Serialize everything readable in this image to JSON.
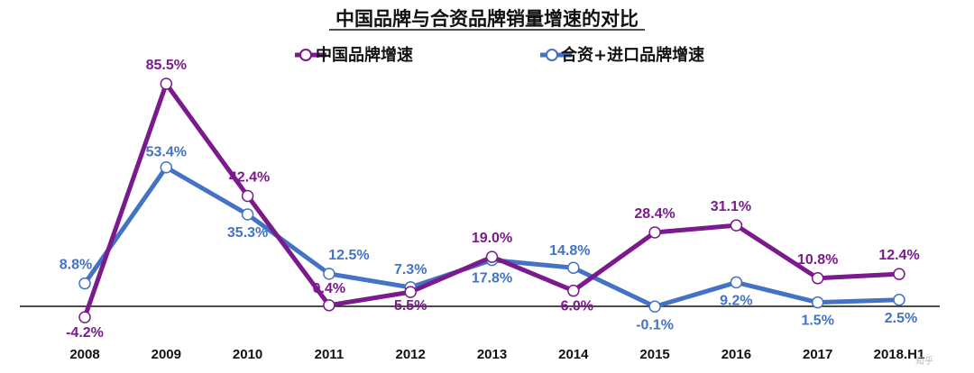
{
  "chart_data": {
    "type": "line",
    "title": "中国品牌与合资品牌销量增速的对比",
    "categories": [
      "2008",
      "2009",
      "2010",
      "2011",
      "2012",
      "2013",
      "2014",
      "2015",
      "2016",
      "2017",
      "2018.H1"
    ],
    "series": [
      {
        "name": "中国品牌增速",
        "color": "#7B1A8C",
        "values": [
          -4.2,
          85.5,
          42.4,
          0.4,
          5.5,
          19.0,
          6.0,
          28.4,
          31.1,
          10.8,
          12.4
        ],
        "labels": [
          "-4.2%",
          "85.5%",
          "42.4%",
          "0.4%",
          "5.5%",
          "19.0%",
          "6.0%",
          "28.4%",
          "31.1%",
          "10.8%",
          "12.4%"
        ]
      },
      {
        "name": "合资+进口品牌增速",
        "color": "#4472C4",
        "values": [
          8.8,
          53.4,
          35.3,
          12.5,
          7.3,
          17.8,
          14.8,
          -0.1,
          9.2,
          1.5,
          2.5
        ],
        "labels": [
          "8.8%",
          "53.4%",
          "35.3%",
          "12.5%",
          "7.3%",
          "17.8%",
          "14.8%",
          "-0.1%",
          "9.2%",
          "1.5%",
          "2.5%"
        ]
      }
    ],
    "legend_position": "top-center",
    "grid": false,
    "baseline": 0,
    "ylim": [
      -5,
      90
    ]
  },
  "watermark": "知乎"
}
